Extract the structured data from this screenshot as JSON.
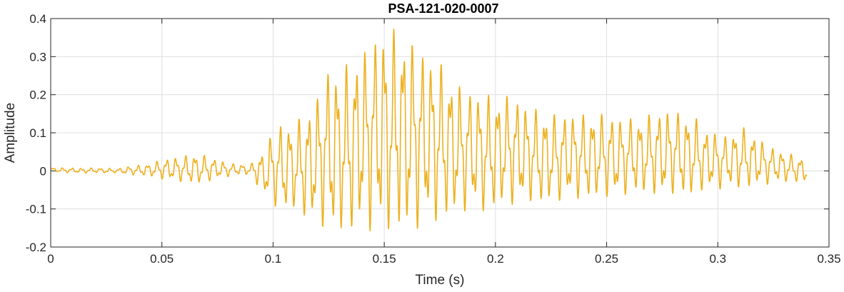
{
  "chart_data": {
    "type": "line",
    "title": "PSA-121-020-0007",
    "xlabel": "Time (s)",
    "ylabel": "Amplitude",
    "xlim": [
      0,
      0.35
    ],
    "ylim": [
      -0.2,
      0.4
    ],
    "xticks": [
      0,
      0.05,
      0.1,
      0.15,
      0.2,
      0.25,
      0.3,
      0.35
    ],
    "xtick_labels": [
      "0",
      "0.05",
      "0.1",
      "0.15",
      "0.2",
      "0.25",
      "0.3",
      "0.35"
    ],
    "yticks": [
      -0.2,
      -0.1,
      0,
      0.1,
      0.2,
      0.3,
      0.4
    ],
    "ytick_labels": [
      "-0.2",
      "-0.1",
      "0",
      "0.1",
      "0.2",
      "0.3",
      "0.4"
    ],
    "grid": true,
    "legend": "none",
    "series": [
      {
        "color": "#EDB120",
        "x": [
          0,
          0.005,
          0.01,
          0.015,
          0.02,
          0.025,
          0.03,
          0.035,
          0.04,
          0.045,
          0.05,
          0.055,
          0.06,
          0.065,
          0.07,
          0.075,
          0.08,
          0.085,
          0.09,
          0.092,
          0.094,
          0.096,
          0.098,
          0.1,
          0.103,
          0.106,
          0.11,
          0.113,
          0.116,
          0.12,
          0.123,
          0.126,
          0.13,
          0.133,
          0.136,
          0.14,
          0.143,
          0.146,
          0.15,
          0.153,
          0.156,
          0.158,
          0.16,
          0.163,
          0.166,
          0.17,
          0.173,
          0.176,
          0.18,
          0.185,
          0.19,
          0.195,
          0.2,
          0.205,
          0.21,
          0.215,
          0.22,
          0.225,
          0.23,
          0.235,
          0.24,
          0.245,
          0.25,
          0.255,
          0.26,
          0.265,
          0.27,
          0.275,
          0.28,
          0.285,
          0.29,
          0.295,
          0.3,
          0.305,
          0.31,
          0.315,
          0.32,
          0.325,
          0.33,
          0.335,
          0.34
        ],
        "y_max": [
          0.008,
          0.008,
          0.008,
          0.007,
          0.008,
          0.007,
          0.006,
          0.012,
          0.015,
          0.02,
          0.03,
          0.035,
          0.04,
          0.045,
          0.04,
          0.03,
          0.02,
          0.018,
          0.015,
          0.04,
          0.05,
          0.045,
          0.09,
          0.1,
          0.12,
          0.13,
          0.12,
          0.15,
          0.16,
          0.2,
          0.25,
          0.28,
          0.27,
          0.28,
          0.3,
          0.32,
          0.33,
          0.35,
          0.38,
          0.36,
          0.39,
          0.37,
          0.35,
          0.34,
          0.32,
          0.31,
          0.29,
          0.28,
          0.25,
          0.22,
          0.21,
          0.2,
          0.2,
          0.2,
          0.19,
          0.17,
          0.16,
          0.15,
          0.15,
          0.15,
          0.15,
          0.15,
          0.15,
          0.14,
          0.14,
          0.14,
          0.15,
          0.16,
          0.16,
          0.15,
          0.14,
          0.11,
          0.1,
          0.09,
          0.12,
          0.1,
          0.08,
          0.06,
          0.05,
          0.04,
          0.03
        ],
        "y_min": [
          0.0,
          -0.005,
          -0.005,
          -0.006,
          -0.005,
          -0.006,
          -0.005,
          -0.01,
          -0.012,
          -0.015,
          -0.022,
          -0.025,
          -0.03,
          -0.035,
          -0.03,
          -0.02,
          -0.015,
          -0.01,
          -0.01,
          -0.03,
          -0.05,
          -0.06,
          -0.08,
          -0.09,
          -0.1,
          -0.11,
          -0.1,
          -0.12,
          -0.13,
          -0.14,
          -0.15,
          -0.17,
          -0.16,
          -0.17,
          -0.16,
          -0.15,
          -0.16,
          -0.15,
          -0.16,
          -0.17,
          -0.15,
          -0.16,
          -0.17,
          -0.14,
          -0.16,
          -0.13,
          -0.14,
          -0.13,
          -0.12,
          -0.11,
          -0.1,
          -0.11,
          -0.1,
          -0.09,
          -0.09,
          -0.08,
          -0.09,
          -0.08,
          -0.08,
          -0.07,
          -0.08,
          -0.07,
          -0.07,
          -0.07,
          -0.06,
          -0.06,
          -0.06,
          -0.07,
          -0.06,
          -0.07,
          -0.06,
          -0.05,
          -0.05,
          -0.04,
          -0.05,
          -0.04,
          -0.04,
          -0.03,
          -0.03,
          -0.03,
          -0.03
        ]
      }
    ]
  }
}
